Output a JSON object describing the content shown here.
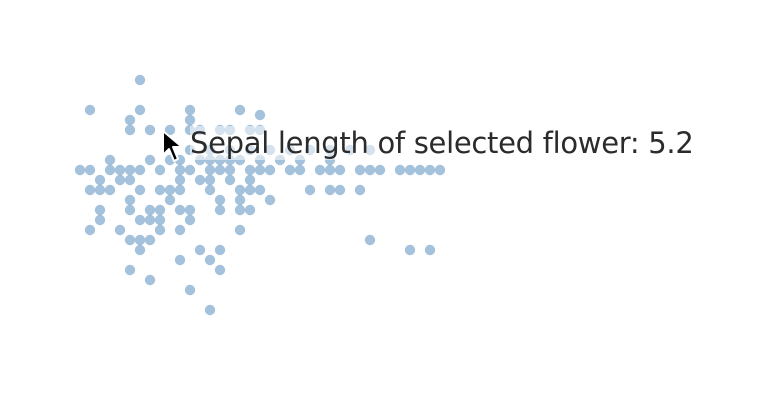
{
  "tooltip": {
    "prefix": "Sepal length of selected flower:",
    "value": "5.2"
  },
  "colors": {
    "point": "#5b8fc0",
    "point_opacity": 0.55,
    "tooltip_text": "#2b2b2b",
    "cursor": "#000000"
  },
  "icons": {
    "cursor": "arrow-cursor-icon"
  },
  "chart_data": {
    "type": "scatter",
    "title": "",
    "xlabel": "",
    "ylabel": "",
    "axes_visible": false,
    "grid": false,
    "xlim": [
      0,
      37
    ],
    "ylim": [
      0,
      25
    ],
    "selected_point": {
      "x": 8,
      "y": 19
    },
    "points": [
      [
        7,
        24
      ],
      [
        2,
        21
      ],
      [
        7,
        21
      ],
      [
        12,
        21
      ],
      [
        17,
        21
      ],
      [
        19,
        20.5
      ],
      [
        6,
        20
      ],
      [
        12,
        20
      ],
      [
        6,
        19
      ],
      [
        8,
        19
      ],
      [
        10,
        19
      ],
      [
        12,
        19
      ],
      [
        13,
        19
      ],
      [
        15,
        19
      ],
      [
        16,
        19
      ],
      [
        18,
        19
      ],
      [
        19,
        19
      ],
      [
        12,
        17
      ],
      [
        14,
        17
      ],
      [
        16,
        17
      ],
      [
        18,
        17
      ],
      [
        20,
        17
      ],
      [
        22,
        17
      ],
      [
        24,
        17
      ],
      [
        26,
        17
      ],
      [
        28,
        17
      ],
      [
        30,
        17
      ],
      [
        4,
        16
      ],
      [
        8,
        16
      ],
      [
        10,
        16
      ],
      [
        11,
        16
      ],
      [
        13,
        16
      ],
      [
        14,
        16
      ],
      [
        15,
        16
      ],
      [
        16,
        16
      ],
      [
        17,
        16
      ],
      [
        19,
        16
      ],
      [
        21,
        16
      ],
      [
        23,
        16
      ],
      [
        26,
        16
      ],
      [
        1,
        15
      ],
      [
        2,
        15
      ],
      [
        4,
        15
      ],
      [
        5,
        15
      ],
      [
        6,
        15
      ],
      [
        7,
        15
      ],
      [
        9,
        15
      ],
      [
        11,
        15
      ],
      [
        12,
        15
      ],
      [
        14,
        15
      ],
      [
        15,
        15
      ],
      [
        16,
        15
      ],
      [
        18,
        15
      ],
      [
        19,
        15
      ],
      [
        20,
        15
      ],
      [
        22,
        15
      ],
      [
        23,
        15
      ],
      [
        25,
        15
      ],
      [
        26,
        15
      ],
      [
        27,
        15
      ],
      [
        29,
        15
      ],
      [
        30,
        15
      ],
      [
        31,
        15
      ],
      [
        33,
        15
      ],
      [
        34,
        15
      ],
      [
        35,
        15
      ],
      [
        36,
        15
      ],
      [
        37,
        15
      ],
      [
        3,
        14
      ],
      [
        5,
        14
      ],
      [
        6,
        14
      ],
      [
        11,
        14
      ],
      [
        13,
        14
      ],
      [
        14,
        14
      ],
      [
        16,
        14
      ],
      [
        18,
        14
      ],
      [
        2,
        13
      ],
      [
        3,
        13
      ],
      [
        4,
        13
      ],
      [
        7,
        13
      ],
      [
        9,
        13
      ],
      [
        10,
        13
      ],
      [
        11,
        13
      ],
      [
        14,
        13
      ],
      [
        17,
        13
      ],
      [
        18,
        13
      ],
      [
        19,
        13
      ],
      [
        24,
        13
      ],
      [
        26,
        13
      ],
      [
        27,
        13
      ],
      [
        29,
        13
      ],
      [
        6,
        12
      ],
      [
        10,
        12
      ],
      [
        15,
        12
      ],
      [
        17,
        12
      ],
      [
        20,
        12
      ],
      [
        3,
        11
      ],
      [
        6,
        11
      ],
      [
        8,
        11
      ],
      [
        9,
        11
      ],
      [
        11,
        11
      ],
      [
        12,
        11
      ],
      [
        15,
        11
      ],
      [
        17,
        11
      ],
      [
        18,
        11
      ],
      [
        3,
        10
      ],
      [
        7,
        10
      ],
      [
        8,
        10
      ],
      [
        9,
        10
      ],
      [
        12,
        10
      ],
      [
        2,
        9
      ],
      [
        5,
        9
      ],
      [
        9,
        9
      ],
      [
        11,
        9
      ],
      [
        17,
        9
      ],
      [
        6,
        8
      ],
      [
        7,
        8
      ],
      [
        8,
        8
      ],
      [
        30,
        8
      ],
      [
        7,
        7
      ],
      [
        13,
        7
      ],
      [
        15,
        7
      ],
      [
        34,
        7
      ],
      [
        36,
        7
      ],
      [
        11,
        6
      ],
      [
        14,
        6
      ],
      [
        6,
        5
      ],
      [
        15,
        5
      ],
      [
        8,
        4
      ],
      [
        12,
        3
      ],
      [
        14,
        1
      ]
    ]
  }
}
